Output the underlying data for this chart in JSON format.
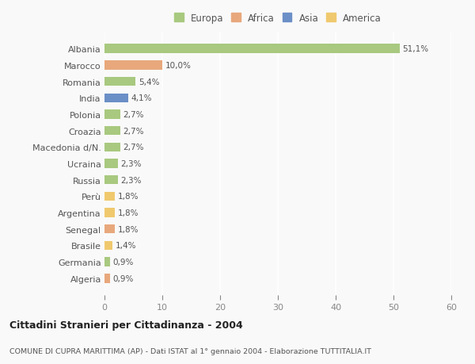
{
  "categories": [
    "Albania",
    "Marocco",
    "Romania",
    "India",
    "Polonia",
    "Croazia",
    "Macedonia d/N.",
    "Ucraina",
    "Russia",
    "Perù",
    "Argentina",
    "Senegal",
    "Brasile",
    "Germania",
    "Algeria"
  ],
  "values": [
    51.1,
    10.0,
    5.4,
    4.1,
    2.7,
    2.7,
    2.7,
    2.3,
    2.3,
    1.8,
    1.8,
    1.8,
    1.4,
    0.9,
    0.9
  ],
  "labels": [
    "51,1%",
    "10,0%",
    "5,4%",
    "4,1%",
    "2,7%",
    "2,7%",
    "2,7%",
    "2,3%",
    "2,3%",
    "1,8%",
    "1,8%",
    "1,8%",
    "1,4%",
    "0,9%",
    "0,9%"
  ],
  "bar_colors": [
    "#a8c97f",
    "#e8a87c",
    "#a8c97f",
    "#6b8fc7",
    "#a8c97f",
    "#a8c97f",
    "#a8c97f",
    "#a8c97f",
    "#a8c97f",
    "#f0c96e",
    "#f0c96e",
    "#e8a87c",
    "#f0c96e",
    "#a8c97f",
    "#e8a87c"
  ],
  "legend_labels": [
    "Europa",
    "Africa",
    "Asia",
    "America"
  ],
  "legend_colors": [
    "#a8c97f",
    "#e8a87c",
    "#6b8fc7",
    "#f0c96e"
  ],
  "xlim": [
    0,
    60
  ],
  "xticks": [
    0,
    10,
    20,
    30,
    40,
    50,
    60
  ],
  "title": "Cittadini Stranieri per Cittadinanza - 2004",
  "subtitle": "COMUNE DI CUPRA MARITTIMA (AP) - Dati ISTAT al 1° gennaio 2004 - Elaborazione TUTTITALIA.IT",
  "plot_bg_color": "#f9f9f9",
  "fig_bg_color": "#f9f9f9",
  "grid_color": "#ffffff",
  "bar_height": 0.55,
  "label_fontsize": 7.5,
  "ytick_fontsize": 8.0,
  "xtick_fontsize": 8.0
}
